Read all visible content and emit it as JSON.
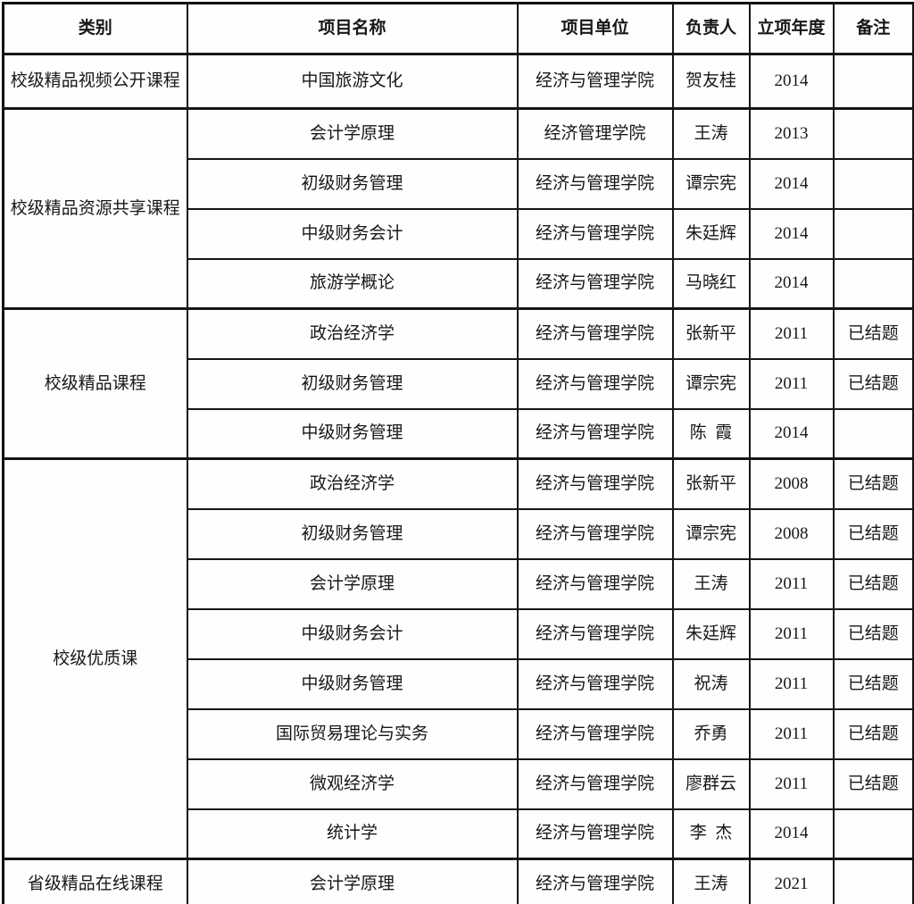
{
  "table": {
    "headers": [
      "类别",
      "项目名称",
      "项目单位",
      "负责人",
      "立项年度",
      "备注"
    ],
    "groups": [
      {
        "category": "校级精品视频公开课程",
        "rows": [
          {
            "name": "中国旅游文化",
            "unit": "经济与管理学院",
            "leader": "贺友桂",
            "year": "2014",
            "note": ""
          }
        ]
      },
      {
        "category": "校级精品资源共享课程",
        "rows": [
          {
            "name": "会计学原理",
            "unit": "经济管理学院",
            "leader": "王涛",
            "year": "2013",
            "note": ""
          },
          {
            "name": "初级财务管理",
            "unit": "经济与管理学院",
            "leader": "谭宗宪",
            "year": "2014",
            "note": ""
          },
          {
            "name": "中级财务会计",
            "unit": "经济与管理学院",
            "leader": "朱廷辉",
            "year": "2014",
            "note": ""
          },
          {
            "name": "旅游学概论",
            "unit": "经济与管理学院",
            "leader": "马晓红",
            "year": "2014",
            "note": ""
          }
        ]
      },
      {
        "category": "校级精品课程",
        "rows": [
          {
            "name": "政治经济学",
            "unit": "经济与管理学院",
            "leader": "张新平",
            "year": "2011",
            "note": "已结题"
          },
          {
            "name": "初级财务管理",
            "unit": "经济与管理学院",
            "leader": "谭宗宪",
            "year": "2011",
            "note": "已结题"
          },
          {
            "name": "中级财务管理",
            "unit": "经济与管理学院",
            "leader": "陈  霞",
            "year": "2014",
            "note": ""
          }
        ]
      },
      {
        "category": "校级优质课",
        "rows": [
          {
            "name": "政治经济学",
            "unit": "经济与管理学院",
            "leader": "张新平",
            "year": "2008",
            "note": "已结题"
          },
          {
            "name": "初级财务管理",
            "unit": "经济与管理学院",
            "leader": "谭宗宪",
            "year": "2008",
            "note": "已结题"
          },
          {
            "name": "会计学原理",
            "unit": "经济与管理学院",
            "leader": "王涛",
            "year": "2011",
            "note": "已结题"
          },
          {
            "name": "中级财务会计",
            "unit": "经济与管理学院",
            "leader": "朱廷辉",
            "year": "2011",
            "note": "已结题"
          },
          {
            "name": "中级财务管理",
            "unit": "经济与管理学院",
            "leader": "祝涛",
            "year": "2011",
            "note": "已结题"
          },
          {
            "name": "国际贸易理论与实务",
            "unit": "经济与管理学院",
            "leader": "乔勇",
            "year": "2011",
            "note": "已结题"
          },
          {
            "name": "微观经济学",
            "unit": "经济与管理学院",
            "leader": "廖群云",
            "year": "2011",
            "note": "已结题"
          },
          {
            "name": "统计学",
            "unit": "经济与管理学院",
            "leader": "李  杰",
            "year": "2014",
            "note": ""
          }
        ]
      },
      {
        "category": "省级精品在线课程",
        "rows": [
          {
            "name": "会计学原理",
            "unit": "经济与管理学院",
            "leader": "王涛",
            "year": "2021",
            "note": ""
          }
        ]
      }
    ],
    "colors": {
      "border": "#161616",
      "background": "#fefefe",
      "text": "#171717"
    }
  }
}
